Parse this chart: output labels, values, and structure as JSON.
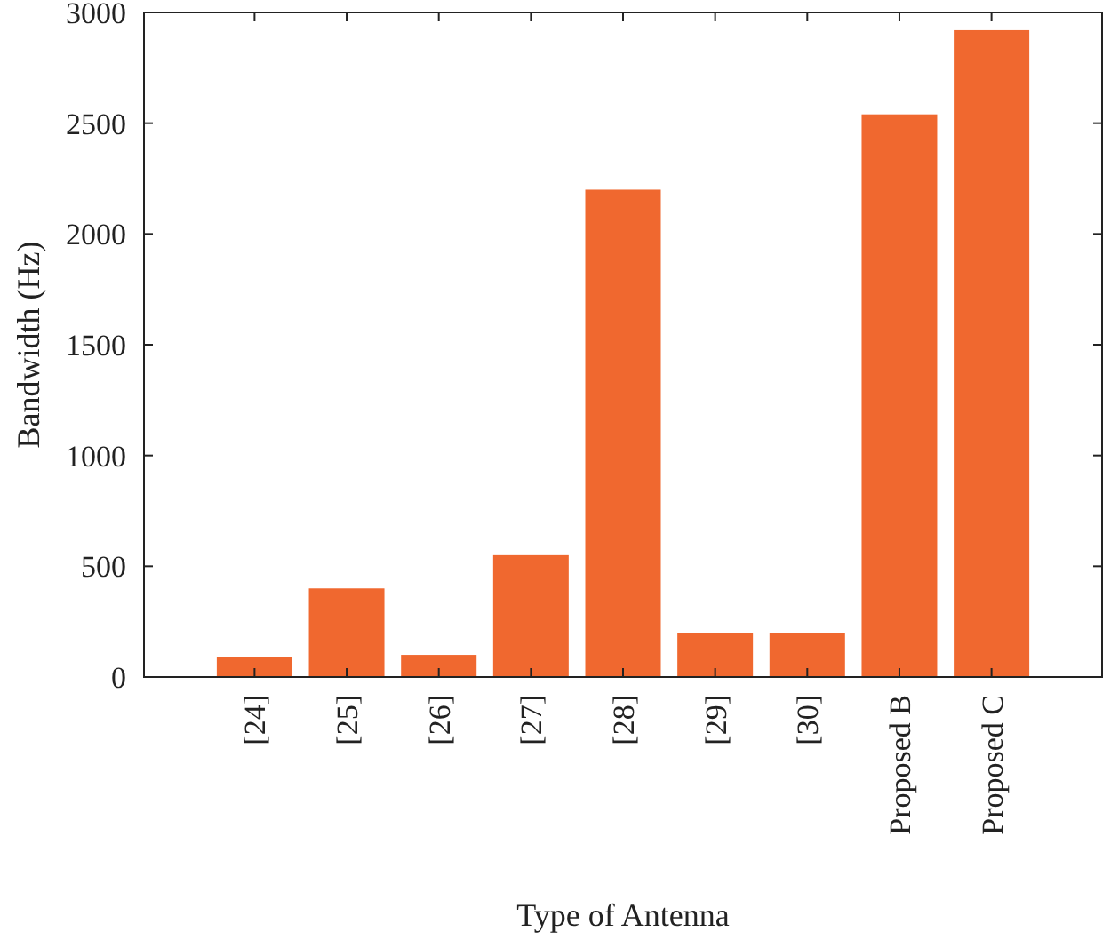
{
  "chart_data": {
    "type": "bar",
    "xlabel": "Type of Antenna",
    "ylabel": "Bandwidth (Hz)",
    "categories": [
      "[24]",
      "[25]",
      "[26]",
      "[27]",
      "[28]",
      "[29]",
      "[30]",
      "Proposed B",
      "Proposed C"
    ],
    "values": [
      90,
      400,
      100,
      550,
      2200,
      200,
      200,
      2540,
      2920
    ],
    "color": "#f0682f",
    "ylim": [
      0,
      3000
    ],
    "yticks": [
      0,
      500,
      1000,
      1500,
      2000,
      2500,
      3000
    ],
    "grid": false
  }
}
